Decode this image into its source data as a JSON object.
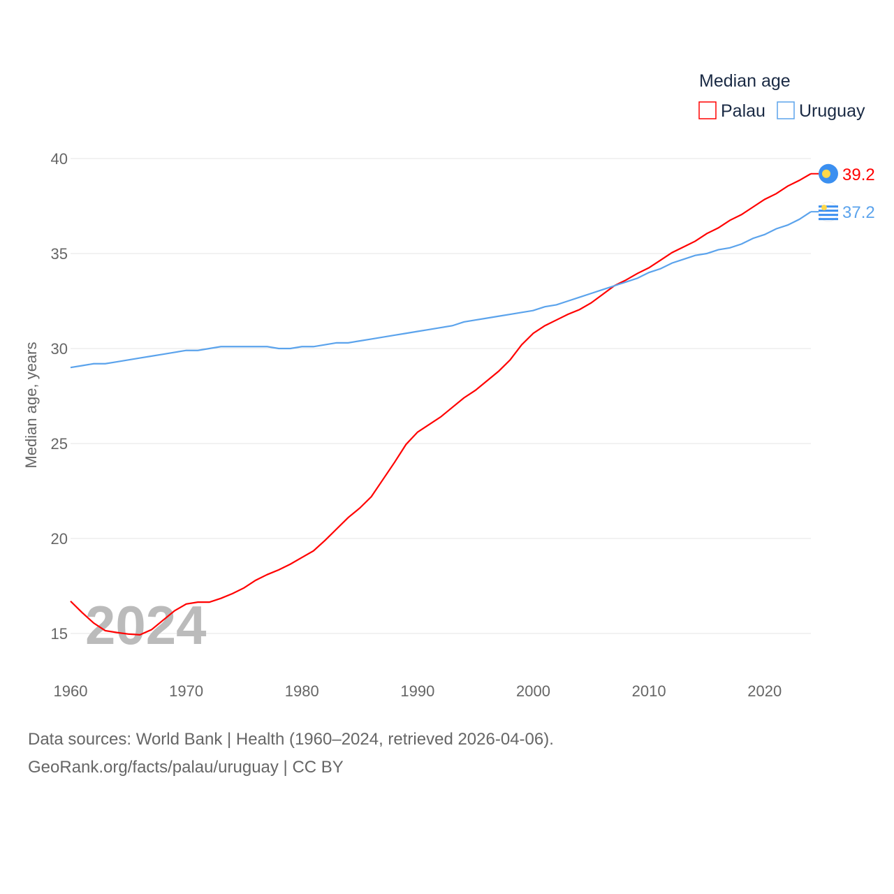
{
  "chart_data": {
    "type": "line",
    "title": "",
    "xlabel": "",
    "ylabel": "Median age, years",
    "xlim": [
      1960,
      2024
    ],
    "ylim": [
      15,
      40
    ],
    "yticks": [
      15,
      20,
      25,
      30,
      35,
      40
    ],
    "xticks": [
      1960,
      1970,
      1980,
      1990,
      2000,
      2010,
      2020
    ],
    "grid": true,
    "legend_title": "Median age",
    "legend_position": "top-right",
    "year_label": "2024",
    "x": [
      1960,
      1961,
      1962,
      1963,
      1964,
      1965,
      1966,
      1967,
      1968,
      1969,
      1970,
      1971,
      1972,
      1973,
      1974,
      1975,
      1976,
      1977,
      1978,
      1979,
      1980,
      1981,
      1982,
      1983,
      1984,
      1985,
      1986,
      1987,
      1988,
      1989,
      1990,
      1991,
      1992,
      1993,
      1994,
      1995,
      1996,
      1997,
      1998,
      1999,
      2000,
      2001,
      2002,
      2003,
      2004,
      2005,
      2006,
      2007,
      2008,
      2009,
      2010,
      2011,
      2012,
      2013,
      2014,
      2015,
      2016,
      2017,
      2018,
      2019,
      2020,
      2021,
      2022,
      2023,
      2024
    ],
    "series": [
      {
        "name": "Palau",
        "color": "#ff0000",
        "end_label": "39.2",
        "values": [
          16.7,
          16.1,
          15.55,
          15.15,
          15.05,
          14.97,
          14.93,
          15.2,
          15.7,
          16.2,
          16.55,
          16.65,
          16.65,
          16.85,
          17.1,
          17.4,
          17.8,
          18.1,
          18.35,
          18.65,
          19.0,
          19.35,
          19.9,
          20.5,
          21.1,
          21.6,
          22.2,
          23.1,
          24.0,
          24.95,
          25.6,
          26.0,
          26.4,
          26.9,
          27.4,
          27.8,
          28.3,
          28.8,
          29.4,
          30.2,
          30.8,
          31.2,
          31.5,
          31.8,
          32.05,
          32.4,
          32.85,
          33.3,
          33.6,
          33.95,
          34.25,
          34.65,
          35.05,
          35.35,
          35.65,
          36.05,
          36.35,
          36.75,
          37.05,
          37.45,
          37.85,
          38.15,
          38.55,
          38.85,
          39.2
        ]
      },
      {
        "name": "Uruguay",
        "color": "#5ba3ec",
        "end_label": "37.2",
        "values": [
          29.0,
          29.1,
          29.2,
          29.2,
          29.3,
          29.4,
          29.5,
          29.6,
          29.7,
          29.8,
          29.9,
          29.9,
          30.0,
          30.1,
          30.1,
          30.1,
          30.1,
          30.1,
          30.0,
          30.0,
          30.1,
          30.1,
          30.2,
          30.3,
          30.3,
          30.4,
          30.5,
          30.6,
          30.7,
          30.8,
          30.9,
          31.0,
          31.1,
          31.2,
          31.4,
          31.5,
          31.6,
          31.7,
          31.8,
          31.9,
          32.0,
          32.2,
          32.3,
          32.5,
          32.7,
          32.9,
          33.1,
          33.3,
          33.5,
          33.7,
          34.0,
          34.2,
          34.5,
          34.7,
          34.9,
          35.0,
          35.2,
          35.3,
          35.5,
          35.8,
          36.0,
          36.3,
          36.5,
          36.8,
          37.2
        ]
      }
    ]
  },
  "source": {
    "line1": "Data sources: World Bank | Health (1960–2024, retrieved 2026-04-06).",
    "line2": "GeoRank.org/facts/palau/uruguay | CC BY"
  }
}
